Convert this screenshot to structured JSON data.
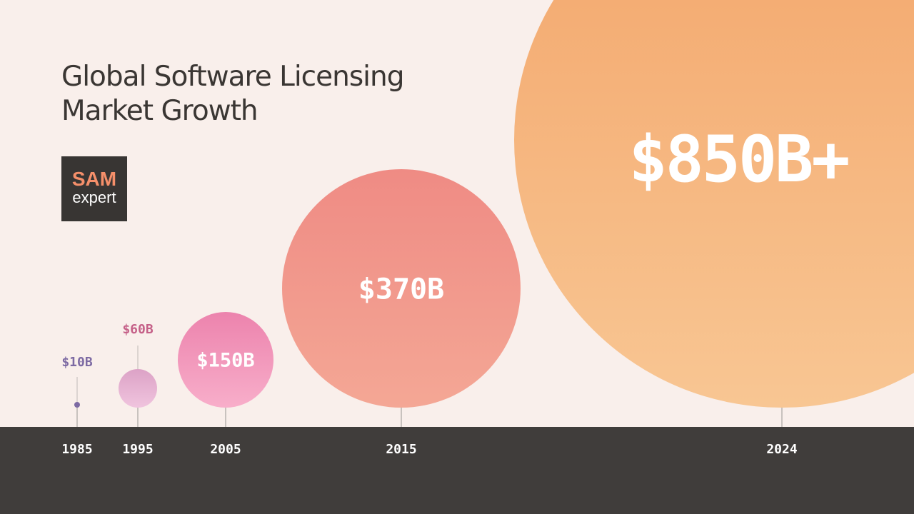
{
  "title_lines": [
    "Global Software Licensing",
    "Market Growth"
  ],
  "logo": {
    "line1": "SAM",
    "line2": "expert"
  },
  "colors": {
    "background": "#f9efeb",
    "footer": "#403d3b",
    "title": "#3a3633",
    "logo_bg": "#383533",
    "logo_accent": "#f58f6a"
  },
  "chart_data": {
    "type": "bubble",
    "title": "Global Software Licensing Market Growth",
    "x": [
      "1985",
      "1995",
      "2005",
      "2015",
      "2024"
    ],
    "values": [
      10,
      60,
      150,
      370,
      850
    ],
    "value_labels": [
      "$10B",
      "$60B",
      "$150B",
      "$370B",
      "$850B+"
    ],
    "unit": "billion USD",
    "bubble_colors": [
      "#7d6aa3",
      "#e6b0d2",
      "#f39ac0",
      "#f29487",
      "#f6b278"
    ],
    "label_colors": [
      "#7d6aa3",
      "#c56088",
      "#ffffff",
      "#ffffff",
      "#ffffff"
    ],
    "label_placement": [
      "above",
      "above",
      "inside",
      "inside",
      "inside"
    ],
    "grid": false,
    "legend": "none"
  }
}
